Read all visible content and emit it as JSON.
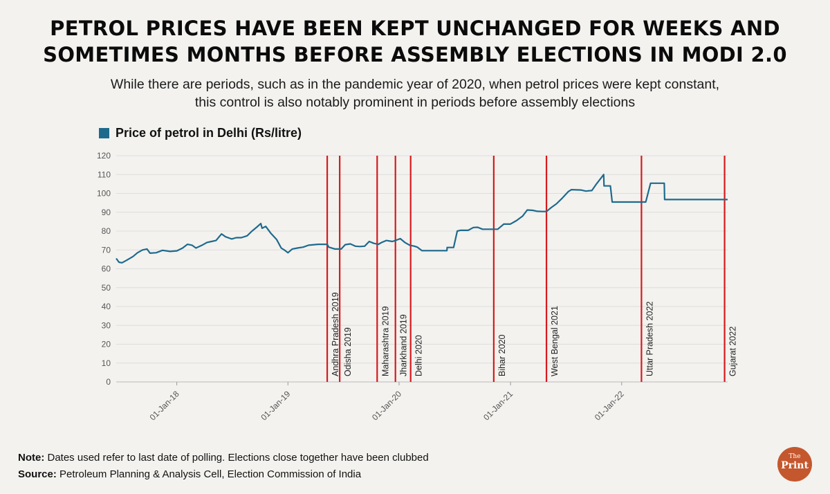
{
  "header": {
    "title_line1": "PETROL PRICES HAVE BEEN KEPT UNCHANGED FOR WEEKS AND",
    "title_line2": "SOMETIMES MONTHS BEFORE ASSEMBLY ELECTIONS IN MODI 2.0",
    "subtitle_line1": "While there are periods, such as in the pandemic year of 2020, when petrol prices were kept constant,",
    "subtitle_line2": "this control is also notably prominent in periods before assembly elections"
  },
  "footer": {
    "note_label": "Note:",
    "note_text": "Dates used refer to last date of polling. Elections close together have been clubbed",
    "source_label": "Source:",
    "source_text": "Petroleum Planning & Analysis Cell, Election Commission of India",
    "logo_small": "The",
    "logo_big": "Print"
  },
  "colors": {
    "line": "#1e6a8d",
    "marker": "#d7191c",
    "grid": "#dddddd"
  },
  "chart_data": {
    "type": "line",
    "legend_label": "Price of petrol in Delhi (Rs/litre)",
    "ylim": [
      0,
      120
    ],
    "yticks": [
      0,
      10,
      20,
      30,
      40,
      50,
      60,
      70,
      80,
      90,
      100,
      110,
      120
    ],
    "xlim": [
      "2017-06-16",
      "2022-12-15"
    ],
    "xticks": [
      {
        "date": "2018-01-01",
        "label": "01-Jan-18"
      },
      {
        "date": "2019-01-01",
        "label": "01-Jan-19"
      },
      {
        "date": "2020-01-01",
        "label": "01-Jan-20"
      },
      {
        "date": "2021-01-01",
        "label": "01-Jan-21"
      },
      {
        "date": "2022-01-01",
        "label": "01-Jan-22"
      }
    ],
    "grid": "horizontal",
    "series": [
      {
        "name": "Price of petrol in Delhi (Rs/litre)",
        "points": [
          [
            "2017-06-16",
            65.5
          ],
          [
            "2017-06-25",
            63.5
          ],
          [
            "2017-07-05",
            63.2
          ],
          [
            "2017-07-20",
            64.5
          ],
          [
            "2017-08-10",
            66.5
          ],
          [
            "2017-08-25",
            68.5
          ],
          [
            "2017-09-10",
            70.0
          ],
          [
            "2017-09-25",
            70.5
          ],
          [
            "2017-10-05",
            68.3
          ],
          [
            "2017-10-25",
            68.5
          ],
          [
            "2017-11-15",
            69.8
          ],
          [
            "2017-12-10",
            69.2
          ],
          [
            "2018-01-01",
            69.5
          ],
          [
            "2018-01-20",
            71.0
          ],
          [
            "2018-02-05",
            73.0
          ],
          [
            "2018-02-20",
            72.5
          ],
          [
            "2018-03-05",
            71.0
          ],
          [
            "2018-03-25",
            72.5
          ],
          [
            "2018-04-10",
            74.0
          ],
          [
            "2018-04-25",
            74.5
          ],
          [
            "2018-05-10",
            75.0
          ],
          [
            "2018-05-28",
            78.5
          ],
          [
            "2018-06-10",
            77.0
          ],
          [
            "2018-06-30",
            75.8
          ],
          [
            "2018-07-15",
            76.5
          ],
          [
            "2018-08-01",
            76.5
          ],
          [
            "2018-08-20",
            77.5
          ],
          [
            "2018-09-05",
            80.0
          ],
          [
            "2018-09-20",
            82.0
          ],
          [
            "2018-10-04",
            84.0
          ],
          [
            "2018-10-08",
            81.5
          ],
          [
            "2018-10-20",
            82.5
          ],
          [
            "2018-11-05",
            79.0
          ],
          [
            "2018-11-25",
            75.5
          ],
          [
            "2018-12-10",
            71.0
          ],
          [
            "2018-12-20",
            70.0
          ],
          [
            "2019-01-01",
            68.5
          ],
          [
            "2019-01-15",
            70.5
          ],
          [
            "2019-02-01",
            71.0
          ],
          [
            "2019-02-20",
            71.5
          ],
          [
            "2019-03-10",
            72.5
          ],
          [
            "2019-04-10",
            73.0
          ],
          [
            "2019-05-10",
            73.0
          ],
          [
            "2019-05-15",
            71.5
          ],
          [
            "2019-06-05",
            70.5
          ],
          [
            "2019-06-25",
            70.5
          ],
          [
            "2019-07-08",
            72.8
          ],
          [
            "2019-07-25",
            73.2
          ],
          [
            "2019-08-10",
            72.0
          ],
          [
            "2019-08-25",
            71.8
          ],
          [
            "2019-09-10",
            72.0
          ],
          [
            "2019-09-25",
            74.5
          ],
          [
            "2019-10-10",
            73.5
          ],
          [
            "2019-10-25",
            73.0
          ],
          [
            "2019-11-05",
            74.0
          ],
          [
            "2019-11-20",
            75.0
          ],
          [
            "2019-12-10",
            74.5
          ],
          [
            "2019-12-20",
            75.0
          ],
          [
            "2020-01-05",
            76.0
          ],
          [
            "2020-01-20",
            74.0
          ],
          [
            "2020-02-05",
            72.5
          ],
          [
            "2020-02-20",
            72.0
          ],
          [
            "2020-03-01",
            71.5
          ],
          [
            "2020-03-16",
            69.6
          ],
          [
            "2020-06-06",
            69.6
          ],
          [
            "2020-06-07",
            71.3
          ],
          [
            "2020-06-28",
            71.3
          ],
          [
            "2020-07-10",
            80.0
          ],
          [
            "2020-07-20",
            80.4
          ],
          [
            "2020-08-15",
            80.4
          ],
          [
            "2020-09-01",
            81.9
          ],
          [
            "2020-09-15",
            82.0
          ],
          [
            "2020-10-01",
            81.0
          ],
          [
            "2020-11-20",
            81.0
          ],
          [
            "2020-12-10",
            83.7
          ],
          [
            "2020-12-31",
            83.7
          ],
          [
            "2021-01-20",
            85.5
          ],
          [
            "2021-02-10",
            88.0
          ],
          [
            "2021-02-25",
            91.2
          ],
          [
            "2021-03-15",
            91.0
          ],
          [
            "2021-03-30",
            90.5
          ],
          [
            "2021-04-15",
            90.4
          ],
          [
            "2021-04-29",
            90.4
          ],
          [
            "2021-05-15",
            92.5
          ],
          [
            "2021-06-01",
            94.5
          ],
          [
            "2021-06-20",
            97.5
          ],
          [
            "2021-07-10",
            101.0
          ],
          [
            "2021-07-20",
            102.0
          ],
          [
            "2021-08-20",
            101.8
          ],
          [
            "2021-09-05",
            101.2
          ],
          [
            "2021-09-25",
            101.5
          ],
          [
            "2021-10-10",
            105.0
          ],
          [
            "2021-11-03",
            110.0
          ],
          [
            "2021-11-04",
            103.97
          ],
          [
            "2021-11-25",
            103.97
          ],
          [
            "2021-12-01",
            95.41
          ],
          [
            "2022-03-21",
            95.41
          ],
          [
            "2022-04-06",
            105.41
          ],
          [
            "2022-05-21",
            105.41
          ],
          [
            "2022-05-22",
            96.72
          ],
          [
            "2022-12-15",
            96.72
          ]
        ]
      }
    ],
    "markers": [
      {
        "date": "2019-05-10",
        "label": "Andhra Pradesh 2019"
      },
      {
        "date": "2019-06-20",
        "label": "Odisha 2019"
      },
      {
        "date": "2019-10-21",
        "label": "Maharashtra 2019"
      },
      {
        "date": "2019-12-20",
        "label": "Jharkhand 2019"
      },
      {
        "date": "2020-02-08",
        "label": "Delhi 2020"
      },
      {
        "date": "2020-11-07",
        "label": "Bihar 2020"
      },
      {
        "date": "2021-04-29",
        "label": "West Bengal 2021"
      },
      {
        "date": "2022-03-07",
        "label": "Uttar Pradesh 2022"
      },
      {
        "date": "2022-12-05",
        "label": "Gujarat 2022"
      }
    ]
  }
}
